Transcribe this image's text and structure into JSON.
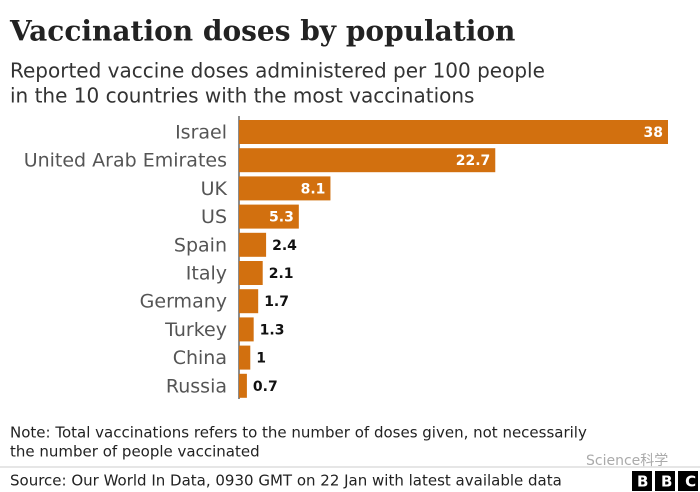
{
  "chart_data": {
    "type": "bar",
    "orientation": "horizontal",
    "title": "Vaccination doses by population",
    "subtitle": [
      "Reported vaccine doses administered per 100 people",
      "in the 10 countries with the most vaccinations"
    ],
    "categories": [
      "Israel",
      "United Arab Emirates",
      "UK",
      "US",
      "Spain",
      "Italy",
      "Germany",
      "Turkey",
      "China",
      "Russia"
    ],
    "values": [
      38,
      22.7,
      8.1,
      5.3,
      2.4,
      2.1,
      1.7,
      1.3,
      1,
      0.7
    ],
    "color": "#d2700f",
    "note": [
      "Note: Total vaccinations refers to the number of doses given, not necessarily",
      "the number of people vaccinated"
    ],
    "source": "Source: Our World In Data, 0930 GMT on 22 Jan with latest available data",
    "logo": "BBC",
    "watermark": "Science科学"
  }
}
